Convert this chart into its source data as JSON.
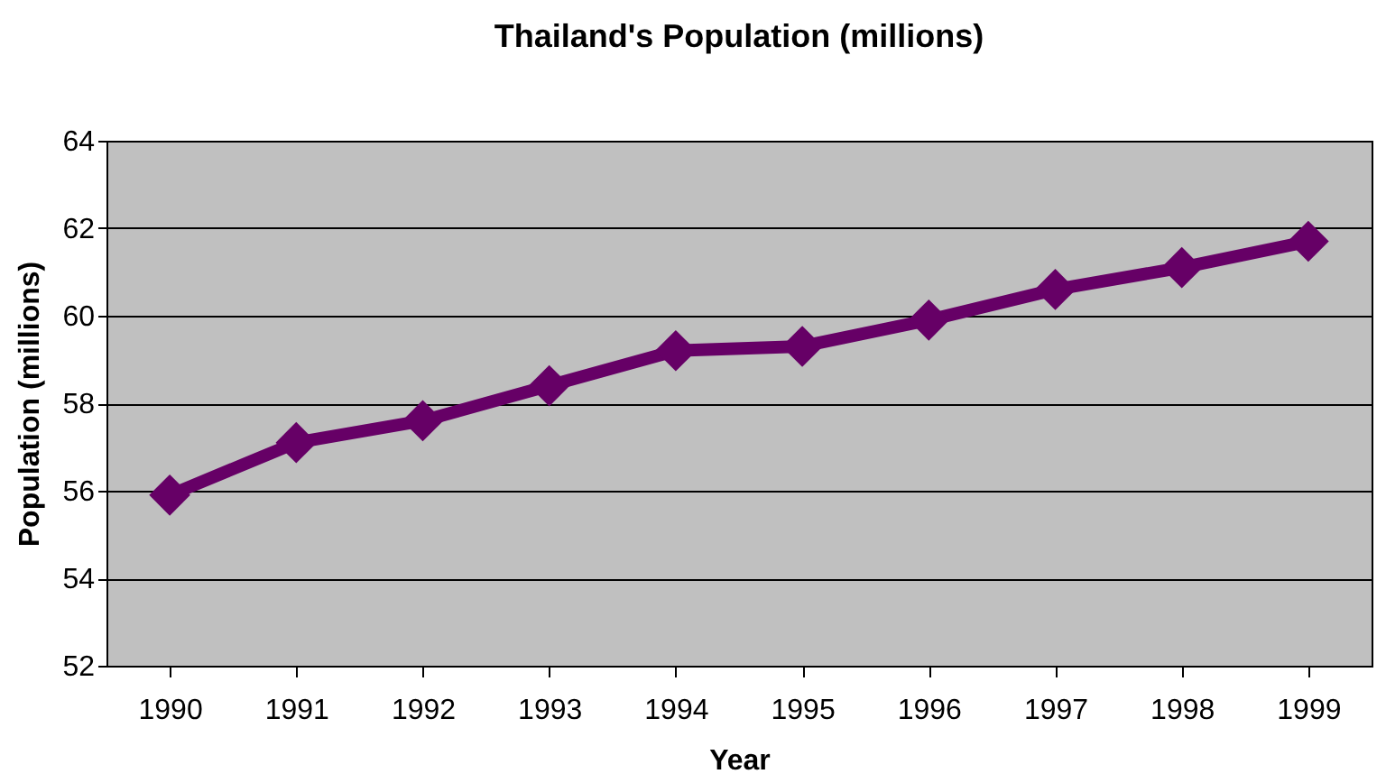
{
  "chart_data": {
    "type": "line",
    "title": "Thailand's Population (millions)",
    "xlabel": "Year",
    "ylabel": "Population (millions)",
    "categories": [
      "1990",
      "1991",
      "1992",
      "1993",
      "1994",
      "1995",
      "1996",
      "1997",
      "1998",
      "1999"
    ],
    "series": [
      {
        "color": "#660066",
        "values": [
          55.9,
          57.1,
          57.6,
          58.4,
          59.2,
          59.3,
          59.9,
          60.6,
          61.1,
          61.7
        ]
      }
    ],
    "ylim": [
      52,
      64
    ],
    "yticks": [
      52,
      54,
      56,
      58,
      60,
      62,
      64
    ],
    "grid": "y",
    "marker": "diamond",
    "line_style": "solid"
  }
}
